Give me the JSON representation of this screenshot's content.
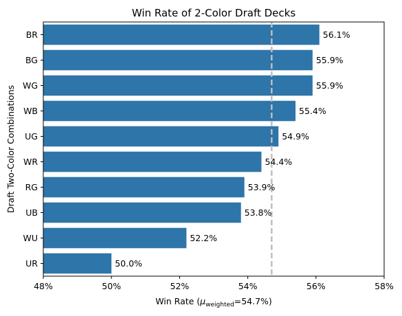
{
  "chart_data": {
    "type": "bar",
    "orientation": "horizontal",
    "title": "Win Rate of 2-Color Draft Decks",
    "ylabel": "Draft Two-Color Combinations",
    "xlabel": {
      "prefix": "Win Rate (",
      "mu": "μ",
      "subscript": "weighted",
      "suffix": "=54.7%)"
    },
    "categories": [
      "BR",
      "BG",
      "WG",
      "WB",
      "UG",
      "WR",
      "RG",
      "UB",
      "WU",
      "UR"
    ],
    "values": [
      56.1,
      55.9,
      55.9,
      55.4,
      54.9,
      54.4,
      53.9,
      53.8,
      52.2,
      50.0
    ],
    "value_labels": [
      "56.1%",
      "55.9%",
      "55.9%",
      "55.4%",
      "54.9%",
      "54.4%",
      "53.9%",
      "53.8%",
      "52.2%",
      "50.0%"
    ],
    "xlim": [
      48,
      58
    ],
    "xticks": [
      48,
      50,
      52,
      54,
      56,
      58
    ],
    "xtick_labels": [
      "48%",
      "50%",
      "52%",
      "54%",
      "56%",
      "58%"
    ],
    "reference_line": {
      "value": 54.7,
      "style": "dashed",
      "color": "#bfbfbf"
    },
    "bar_color": "#2e75a9",
    "grid": false,
    "legend": "none"
  }
}
